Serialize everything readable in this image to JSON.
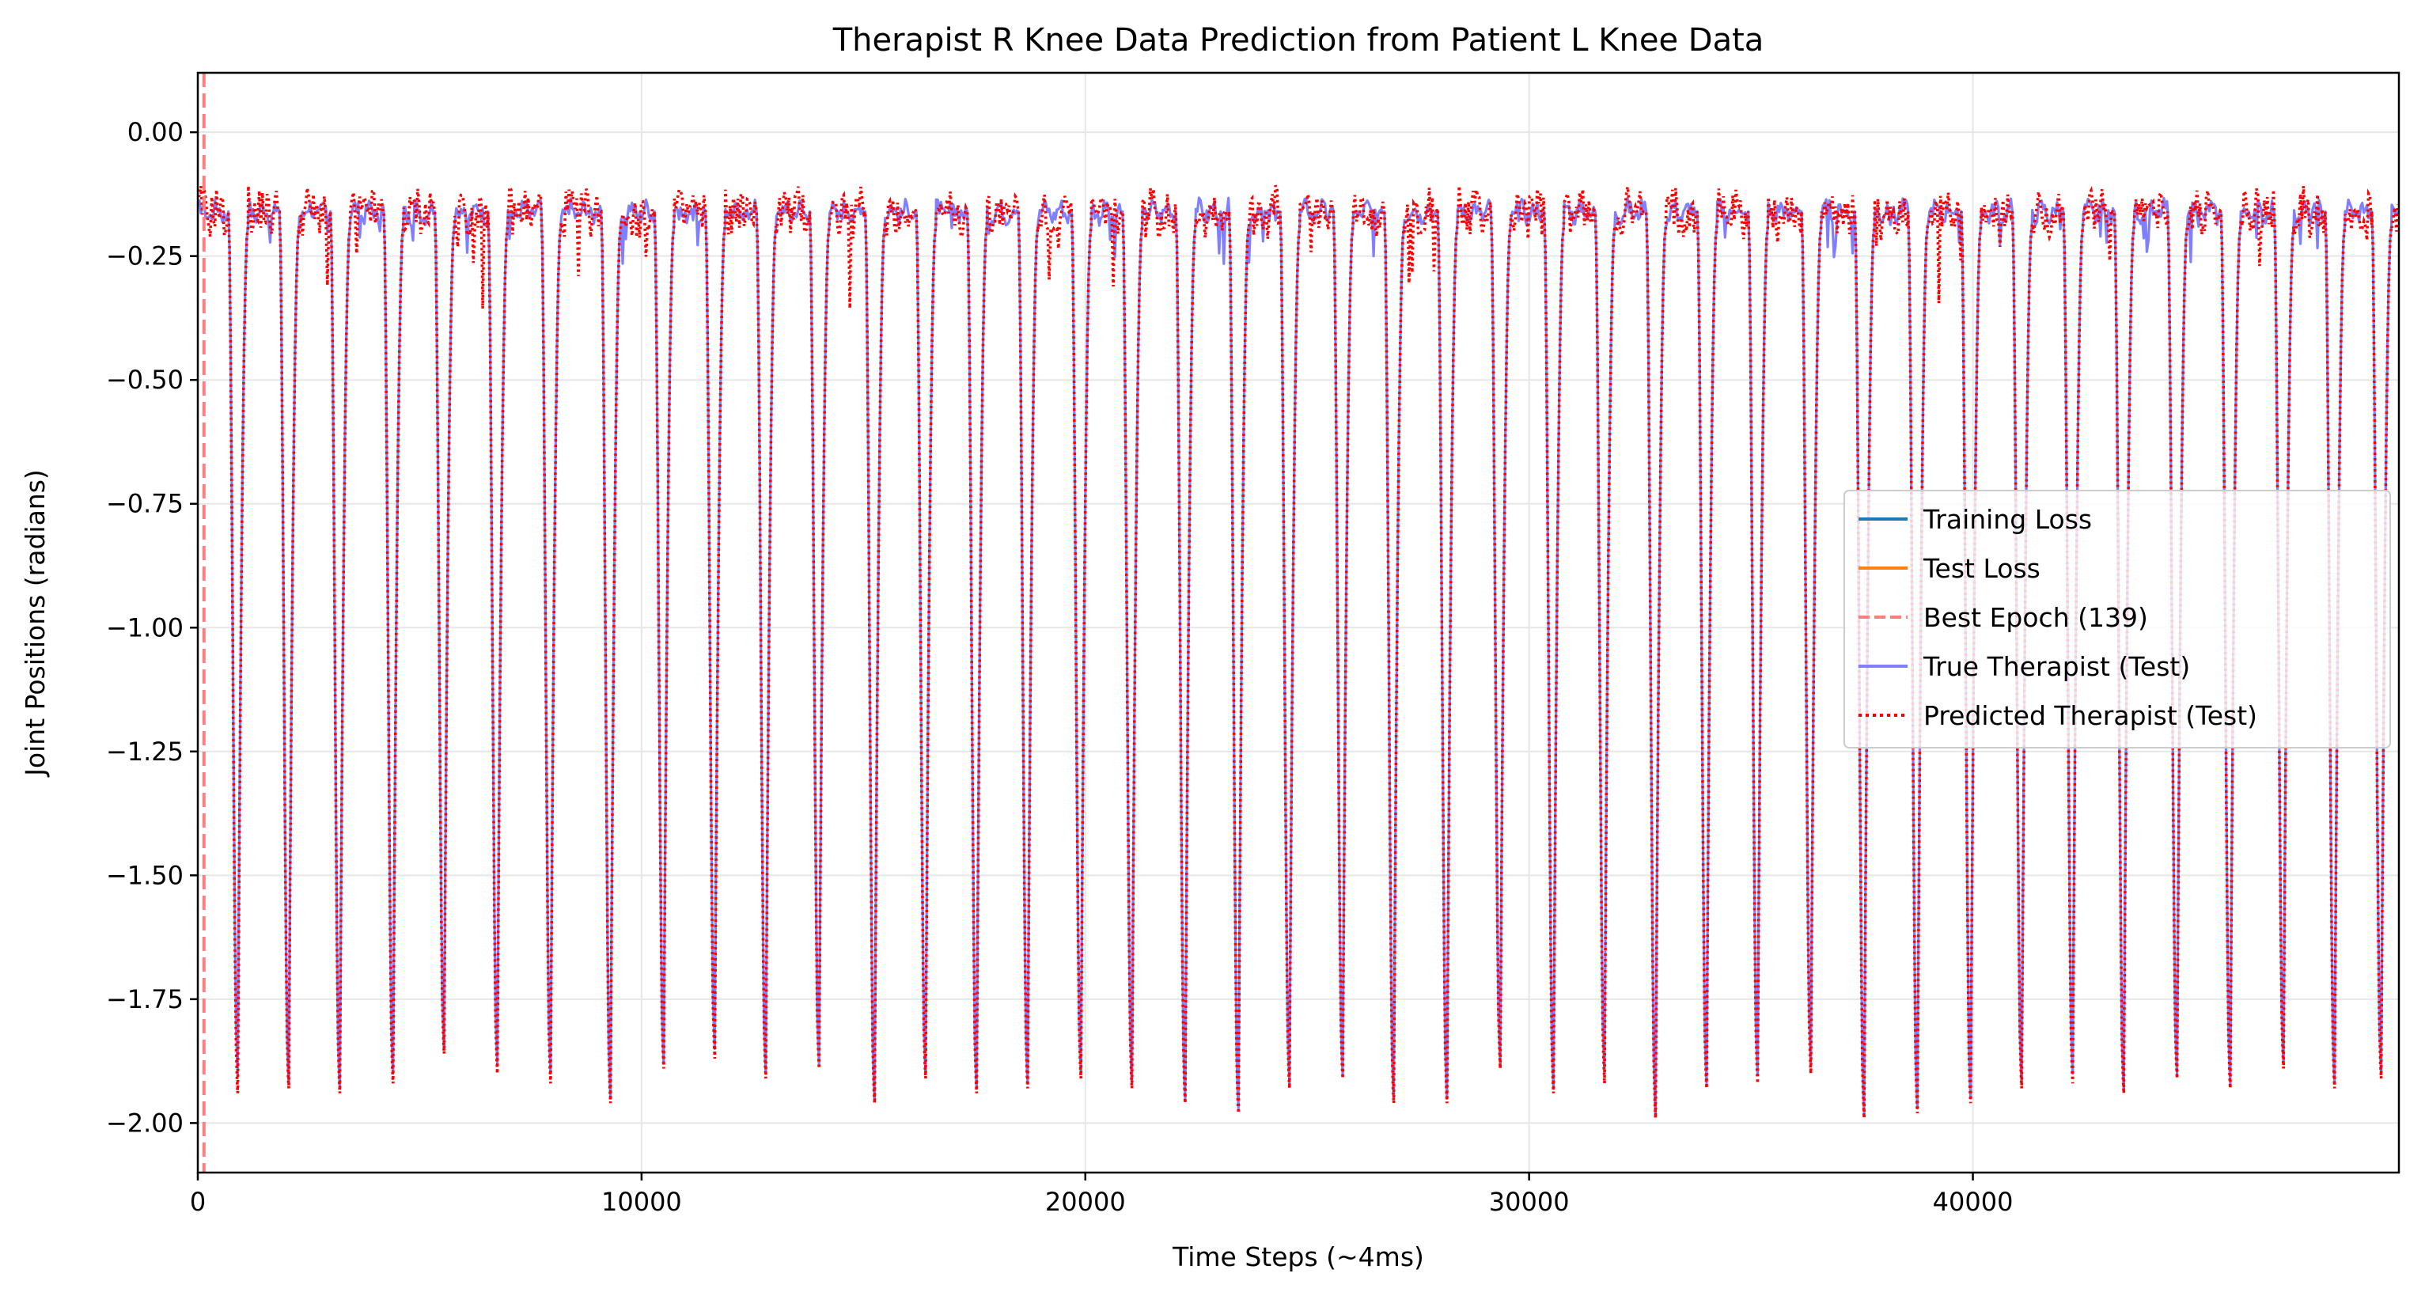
{
  "chart_data": {
    "type": "line",
    "title": "Therapist R Knee Data Prediction from Patient L Knee Data",
    "xlabel": "Time Steps (~4ms)",
    "ylabel": "Joint Positions (radians)",
    "xlim": [
      0,
      49600
    ],
    "ylim": [
      -2.1,
      0.12
    ],
    "x_ticks": [
      0,
      10000,
      20000,
      30000,
      40000
    ],
    "x_tick_labels": [
      "0",
      "10000",
      "20000",
      "30000",
      "40000"
    ],
    "y_ticks": [
      0.0,
      -0.25,
      -0.5,
      -0.75,
      -1.0,
      -1.25,
      -1.5,
      -1.75,
      -2.0
    ],
    "y_tick_labels": [
      "0.00",
      "−0.25",
      "−0.50",
      "−0.75",
      "−1.00",
      "−1.25",
      "−1.50",
      "−1.75",
      "−2.00"
    ],
    "grid": true,
    "legend_position": "center-right",
    "legend": [
      {
        "label": "Training Loss",
        "color": "#1f77b4",
        "style": "solid"
      },
      {
        "label": "Test Loss",
        "color": "#ff7f0e",
        "style": "solid"
      },
      {
        "label": "Best Epoch (139)",
        "color": "#ff7f7f",
        "style": "dashed"
      },
      {
        "label": "True Therapist (Test)",
        "color": "#7f7fff",
        "style": "solid"
      },
      {
        "label": "Predicted Therapist (Test)",
        "color": "#ff0000",
        "style": "dotted"
      }
    ],
    "best_epoch_x": 139,
    "series": [
      {
        "name": "True Therapist (Test)",
        "color": "#7f7fff",
        "baseline": -0.16,
        "cycle_minima_x": [
          900,
          2050,
          3200,
          4400,
          5550,
          6750,
          7950,
          9300,
          10500,
          11650,
          12800,
          14000,
          15250,
          16400,
          17550,
          18700,
          19900,
          21050,
          22250,
          23450,
          24600,
          25800,
          26950,
          28150,
          29350,
          30550,
          31700,
          32850,
          34000,
          35150,
          36350,
          37550,
          38750,
          39950,
          41100,
          42250,
          43400,
          44600,
          45800,
          47000,
          48150,
          49200
        ],
        "cycle_minima_y": [
          -1.9,
          -1.92,
          -1.93,
          -1.9,
          -1.85,
          -1.88,
          -1.9,
          -1.95,
          -1.88,
          -1.85,
          -1.9,
          -1.88,
          -1.95,
          -1.9,
          -1.93,
          -1.92,
          -1.9,
          -1.92,
          -1.95,
          -1.97,
          -1.92,
          -1.9,
          -1.95,
          -1.95,
          -1.88,
          -1.93,
          -1.9,
          -1.98,
          -1.92,
          -1.9,
          -1.88,
          -1.98,
          -1.97,
          -1.95,
          -1.92,
          -1.9,
          -1.93,
          -1.9,
          -1.92,
          -1.88,
          -1.92,
          -1.9
        ]
      },
      {
        "name": "Predicted Therapist (Test)",
        "color": "#ff0000",
        "baseline": -0.16,
        "cycle_minima_x": [
          900,
          2050,
          3200,
          4400,
          5550,
          6750,
          7950,
          9300,
          10500,
          11650,
          12800,
          14000,
          15250,
          16400,
          17550,
          18700,
          19900,
          21050,
          22250,
          23450,
          24600,
          25800,
          26950,
          28150,
          29350,
          30550,
          31700,
          32850,
          34000,
          35150,
          36350,
          37550,
          38750,
          39950,
          41100,
          42250,
          43400,
          44600,
          45800,
          47000,
          48150,
          49200
        ],
        "cycle_minima_y": [
          -1.94,
          -1.93,
          -1.94,
          -1.92,
          -1.86,
          -1.9,
          -1.92,
          -1.96,
          -1.89,
          -1.87,
          -1.91,
          -1.89,
          -1.96,
          -1.91,
          -1.94,
          -1.93,
          -1.91,
          -1.93,
          -1.96,
          -1.98,
          -1.93,
          -1.91,
          -1.96,
          -1.96,
          -1.89,
          -1.94,
          -1.92,
          -1.99,
          -1.93,
          -1.92,
          -1.9,
          -1.99,
          -1.98,
          -1.96,
          -1.93,
          -1.92,
          -1.94,
          -1.91,
          -1.93,
          -1.89,
          -1.93,
          -1.91
        ]
      }
    ]
  }
}
